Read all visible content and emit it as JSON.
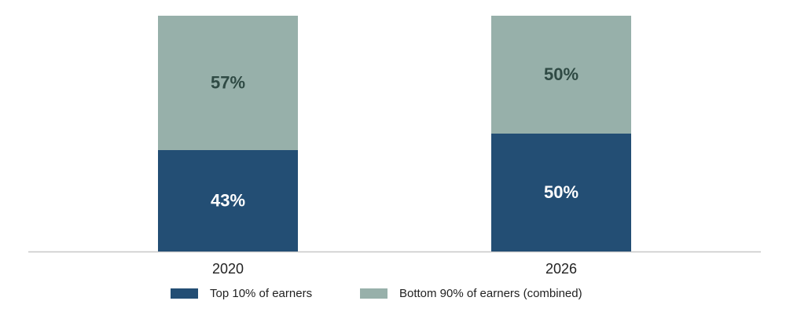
{
  "chart_data": {
    "type": "stacked_bar",
    "categories": [
      "2020",
      "2026"
    ],
    "series": [
      {
        "name": "Top 10% of earners",
        "color": "#234e74",
        "label_color": "#ffffff",
        "values": [
          43,
          50
        ],
        "value_labels": [
          "43%",
          "50%"
        ]
      },
      {
        "name": "Bottom 90% of earners (combined)",
        "color": "#97b0aa",
        "label_color": "#2f4a44",
        "values": [
          57,
          50
        ],
        "value_labels": [
          "57%",
          "50%"
        ]
      }
    ]
  }
}
